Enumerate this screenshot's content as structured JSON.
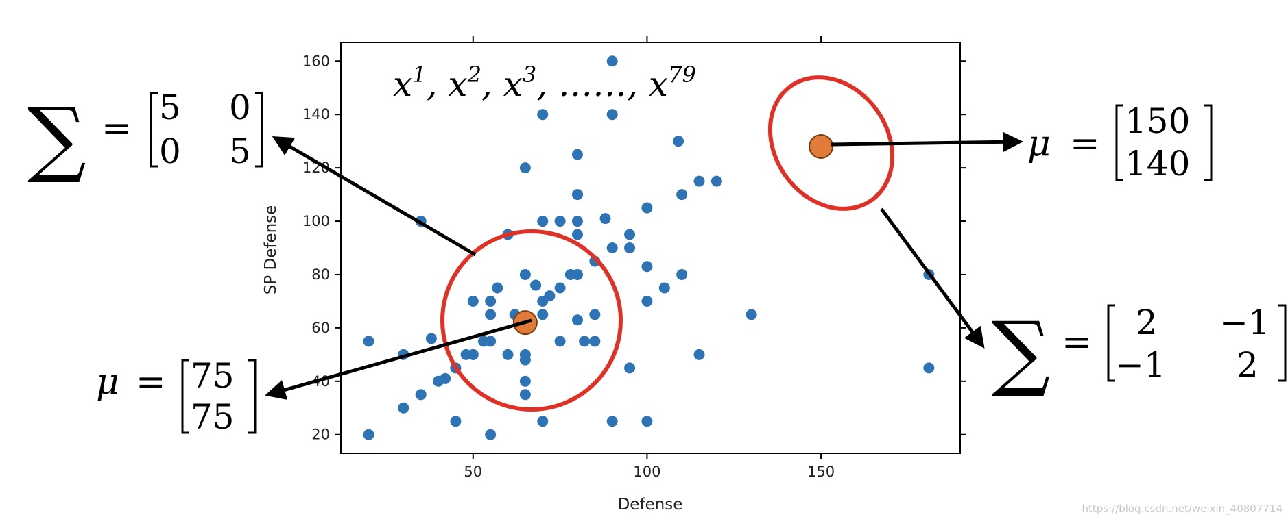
{
  "chart_data": {
    "type": "scatter",
    "title": "",
    "xlabel": "Defense",
    "ylabel": "SP Defense",
    "xlim": [
      12,
      190
    ],
    "ylim": [
      13,
      167
    ],
    "xticks": [
      50,
      100,
      150
    ],
    "yticks": [
      20,
      40,
      60,
      80,
      100,
      120,
      140,
      160
    ],
    "grid": false,
    "series": [
      {
        "color": "#2e74b5",
        "points": [
          [
            20,
            55
          ],
          [
            20,
            20
          ],
          [
            30,
            50
          ],
          [
            30,
            30
          ],
          [
            35,
            35
          ],
          [
            35,
            100
          ],
          [
            38,
            56
          ],
          [
            40,
            40
          ],
          [
            42,
            41
          ],
          [
            45,
            25
          ],
          [
            45,
            45
          ],
          [
            48,
            50
          ],
          [
            50,
            50
          ],
          [
            50,
            70
          ],
          [
            50,
            50
          ],
          [
            53,
            55
          ],
          [
            55,
            20
          ],
          [
            55,
            55
          ],
          [
            55,
            65
          ],
          [
            55,
            70
          ],
          [
            57,
            75
          ],
          [
            60,
            95
          ],
          [
            60,
            50
          ],
          [
            62,
            65
          ],
          [
            65,
            48
          ],
          [
            65,
            50
          ],
          [
            65,
            40
          ],
          [
            65,
            35
          ],
          [
            65,
            120
          ],
          [
            65,
            80
          ],
          [
            68,
            76
          ],
          [
            70,
            70
          ],
          [
            70,
            65
          ],
          [
            70,
            25
          ],
          [
            70,
            100
          ],
          [
            70,
            140
          ],
          [
            72,
            72
          ],
          [
            75,
            75
          ],
          [
            75,
            55
          ],
          [
            75,
            100
          ],
          [
            78,
            80
          ],
          [
            80,
            100
          ],
          [
            80,
            125
          ],
          [
            80,
            95
          ],
          [
            80,
            110
          ],
          [
            80,
            80
          ],
          [
            80,
            63
          ],
          [
            82,
            55
          ],
          [
            85,
            55
          ],
          [
            85,
            65
          ],
          [
            85,
            85
          ],
          [
            88,
            101
          ],
          [
            90,
            90
          ],
          [
            90,
            160
          ],
          [
            90,
            140
          ],
          [
            90,
            25
          ],
          [
            95,
            90
          ],
          [
            95,
            95
          ],
          [
            95,
            45
          ],
          [
            100,
            105
          ],
          [
            100,
            83
          ],
          [
            100,
            70
          ],
          [
            100,
            25
          ],
          [
            105,
            75
          ],
          [
            109,
            130
          ],
          [
            110,
            80
          ],
          [
            110,
            110
          ],
          [
            115,
            115
          ],
          [
            115,
            50
          ],
          [
            120,
            115
          ],
          [
            130,
            65
          ],
          [
            181,
            80
          ],
          [
            181,
            45
          ]
        ]
      }
    ],
    "components": [
      {
        "mean": [
          65,
          62
        ],
        "color": "#e07b39",
        "ring_color": "#e03127"
      },
      {
        "mean": [
          150,
          128
        ],
        "color": "#e07b39",
        "ring_color": "#e03127"
      }
    ]
  },
  "annotations": {
    "samples": {
      "x": "x",
      "sup1": "1",
      "sup2": "2",
      "sup3": "3",
      "sep": ", ",
      "dots": "……",
      "sup79": "79"
    },
    "sigma_left": {
      "symbol": "∑",
      "eq": "=",
      "r1c1": "5",
      "r1c2": "0",
      "r2c1": "0",
      "r2c2": "5"
    },
    "mu_left": {
      "symbol": "μ",
      "eq": "=",
      "r1": "75",
      "r2": "75"
    },
    "mu_right": {
      "symbol": "μ",
      "eq": "=",
      "r1": "150",
      "r2": "140"
    },
    "sigma_right": {
      "symbol": "∑",
      "eq": "=",
      "r1c1": "2",
      "r1c2": "−1",
      "r2c1": "−1",
      "r2c2": "2"
    }
  },
  "watermark": "https://blog.csdn.net/weixin_40807714"
}
